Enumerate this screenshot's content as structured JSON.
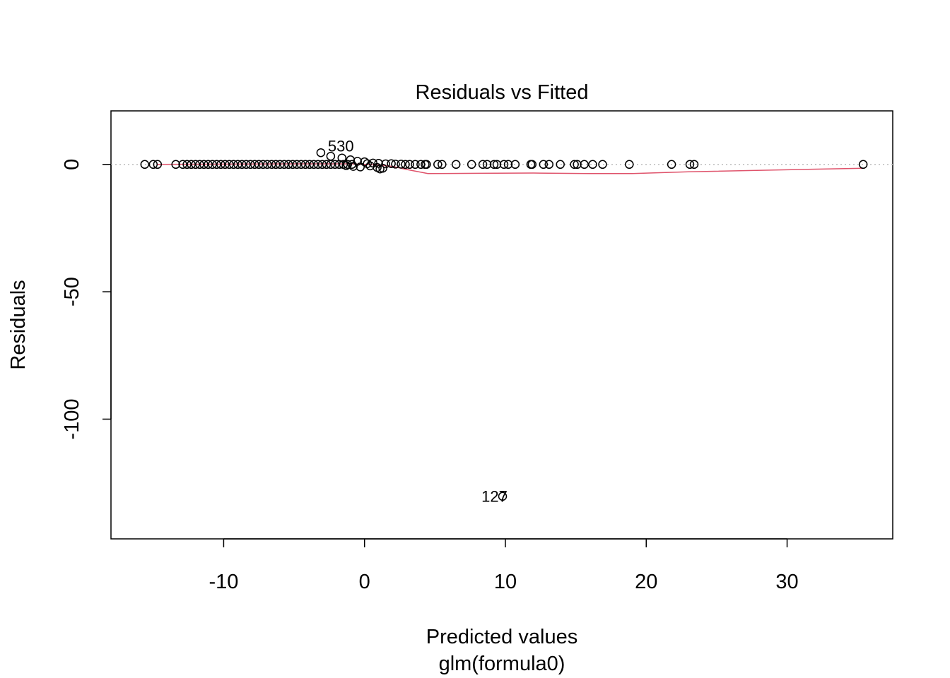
{
  "chart_data": {
    "type": "scatter",
    "title": "Residuals vs Fitted",
    "xlabel": "Predicted values",
    "subtitle": "glm(formula0)",
    "ylabel": "Residuals",
    "xlim": [
      -18,
      37.5
    ],
    "ylim": [
      -147,
      21
    ],
    "x_ticks": [
      -10,
      0,
      10,
      20,
      30
    ],
    "x_tick_labels": [
      "-10",
      "0",
      "10",
      "20",
      "30"
    ],
    "y_ticks": [
      0,
      -50,
      -100
    ],
    "y_tick_labels": [
      "0",
      "-50",
      "-100"
    ],
    "reference_line_y": 0,
    "grid": false,
    "colors": {
      "points": "#000000",
      "smoother": "#DF536B",
      "reference": "#BEBEBE"
    },
    "points": [
      [
        -15.6,
        0
      ],
      [
        -15.0,
        0
      ],
      [
        -14.7,
        0
      ],
      [
        -13.4,
        0
      ],
      [
        -12.9,
        0
      ],
      [
        -12.6,
        0
      ],
      [
        -12.3,
        0
      ],
      [
        -12.0,
        0
      ],
      [
        -11.7,
        0
      ],
      [
        -11.4,
        0
      ],
      [
        -11.1,
        0
      ],
      [
        -10.8,
        0
      ],
      [
        -10.5,
        0
      ],
      [
        -10.2,
        0
      ],
      [
        -9.9,
        0
      ],
      [
        -9.6,
        0
      ],
      [
        -9.3,
        0
      ],
      [
        -9.0,
        0
      ],
      [
        -8.7,
        0
      ],
      [
        -8.4,
        0
      ],
      [
        -8.1,
        0
      ],
      [
        -7.8,
        0
      ],
      [
        -7.5,
        0
      ],
      [
        -7.2,
        0
      ],
      [
        -6.9,
        0
      ],
      [
        -6.6,
        0
      ],
      [
        -6.3,
        0
      ],
      [
        -6.0,
        0
      ],
      [
        -5.7,
        0
      ],
      [
        -5.4,
        0
      ],
      [
        -5.1,
        0
      ],
      [
        -4.8,
        0
      ],
      [
        -4.5,
        0
      ],
      [
        -4.2,
        0
      ],
      [
        -3.9,
        0
      ],
      [
        -3.6,
        0
      ],
      [
        -3.3,
        0
      ],
      [
        -3.0,
        0
      ],
      [
        -2.7,
        0
      ],
      [
        -2.4,
        0
      ],
      [
        -2.1,
        0
      ],
      [
        -1.8,
        0
      ],
      [
        -1.5,
        0
      ],
      [
        -1.2,
        0
      ],
      [
        -0.9,
        0
      ],
      [
        -3.1,
        4.6
      ],
      [
        -2.4,
        3.2
      ],
      [
        -1.6,
        2.5
      ],
      [
        -1.0,
        1.8
      ],
      [
        -0.5,
        1.2
      ],
      [
        0.0,
        1.0
      ],
      [
        -1.3,
        -0.5
      ],
      [
        -0.8,
        -0.8
      ],
      [
        -0.3,
        -1.0
      ],
      [
        0.4,
        -0.6
      ],
      [
        0.9,
        -1.2
      ],
      [
        1.1,
        -1.8
      ],
      [
        1.3,
        -1.5
      ],
      [
        0.2,
        0.3
      ],
      [
        0.6,
        0.5
      ],
      [
        1.0,
        0.4
      ],
      [
        1.5,
        0.2
      ],
      [
        1.9,
        0.3
      ],
      [
        2.2,
        0.1
      ],
      [
        2.6,
        0.1
      ],
      [
        2.9,
        0
      ],
      [
        3.2,
        0
      ],
      [
        3.6,
        0
      ],
      [
        4.0,
        0
      ],
      [
        4.3,
        0
      ],
      [
        4.4,
        0
      ],
      [
        5.2,
        0
      ],
      [
        5.5,
        0
      ],
      [
        6.5,
        0
      ],
      [
        7.6,
        0
      ],
      [
        8.4,
        0
      ],
      [
        8.7,
        0
      ],
      [
        9.2,
        0
      ],
      [
        9.4,
        0
      ],
      [
        9.9,
        0
      ],
      [
        10.2,
        0
      ],
      [
        10.7,
        0
      ],
      [
        11.8,
        0
      ],
      [
        11.9,
        0
      ],
      [
        12.7,
        0
      ],
      [
        13.1,
        0
      ],
      [
        13.9,
        0
      ],
      [
        14.9,
        0
      ],
      [
        15.1,
        0
      ],
      [
        15.6,
        0
      ],
      [
        16.2,
        0
      ],
      [
        16.9,
        0
      ],
      [
        18.8,
        0
      ],
      [
        21.8,
        0
      ],
      [
        23.1,
        0
      ],
      [
        23.4,
        0
      ],
      [
        35.4,
        0
      ],
      [
        9.8,
        -130.3
      ]
    ],
    "smoother": [
      [
        -14.7,
        0
      ],
      [
        -10,
        0.1
      ],
      [
        -5,
        0.2
      ],
      [
        -1,
        0.2
      ],
      [
        0,
        0
      ],
      [
        1,
        -0.3
      ],
      [
        2,
        -0.8
      ],
      [
        3,
        -2.0
      ],
      [
        4.5,
        -3.6
      ],
      [
        8,
        -3.5
      ],
      [
        12,
        -3.4
      ],
      [
        16,
        -3.6
      ],
      [
        19,
        -3.6
      ],
      [
        23,
        -2.9
      ],
      [
        35.4,
        -1.5
      ]
    ],
    "annotations": [
      {
        "text": "530",
        "x": -2.6,
        "y": 5.0
      },
      {
        "text": "127",
        "x": 8.3,
        "y": -132.5
      }
    ]
  }
}
